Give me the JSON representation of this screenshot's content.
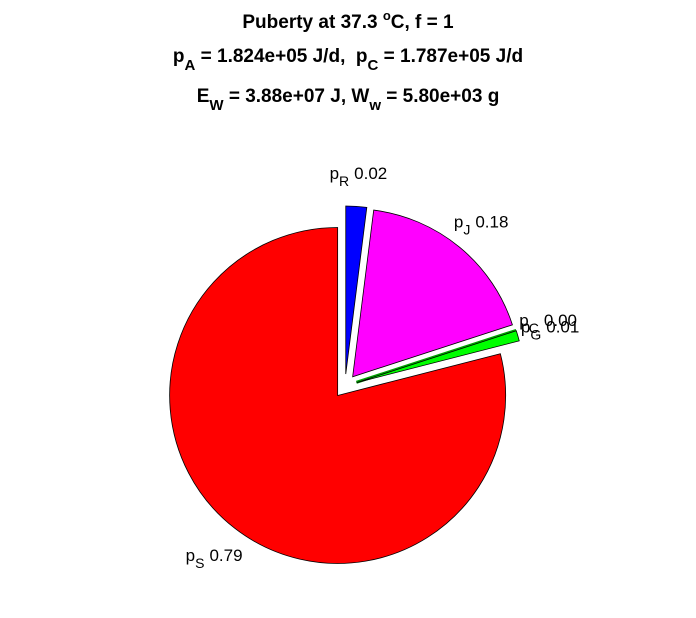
{
  "chart_data": {
    "type": "pie",
    "title": [
      [
        "Puberty at 37.3 ",
        "o",
        "C, f = 1"
      ],
      [
        "p",
        "A",
        " = 1.824e+05 J/d,  p",
        "C",
        " = 1.787e+05 J/d"
      ],
      [
        "E",
        "W",
        " = 3.88e+07 J, W",
        "w",
        " = 5.80e+03 g"
      ]
    ],
    "category_symbol": "p",
    "categories": [
      "R",
      "J",
      "C",
      "G",
      "S"
    ],
    "values": [
      0.02,
      0.18,
      0.0,
      0.01,
      0.79
    ],
    "value_labels": [
      "0.02",
      "0.18",
      "0.00",
      "0.01",
      "0.79"
    ],
    "colors": [
      "#0000ff",
      "#ff00ff",
      "#00a000",
      "#00ff00",
      "#ff0000"
    ]
  }
}
